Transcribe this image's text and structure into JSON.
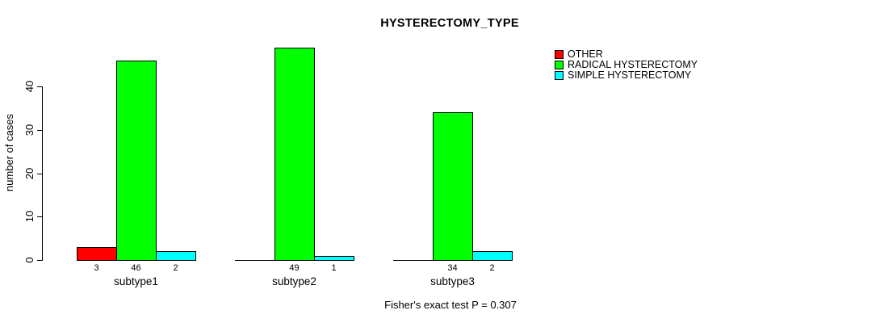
{
  "chart_data": {
    "type": "bar",
    "title": "HYSTERECTOMY_TYPE",
    "ylabel": "number of cases",
    "xlabel": "",
    "categories": [
      "subtype1",
      "subtype2",
      "subtype3"
    ],
    "series": [
      {
        "name": "OTHER",
        "color": "#ff0000",
        "values": [
          3,
          0,
          0
        ]
      },
      {
        "name": "RADICAL HYSTERECTOMY",
        "color": "#00ff00",
        "values": [
          46,
          49,
          34
        ]
      },
      {
        "name": "SIMPLE HYSTERECTOMY",
        "color": "#00ffff",
        "values": [
          2,
          1,
          2
        ]
      }
    ],
    "yticks": [
      0,
      10,
      20,
      30,
      40
    ],
    "ylim": [
      0,
      49
    ],
    "grid": false,
    "legend_position": "top-right",
    "bar_value_labels_shown_for_nonzero_only": true,
    "annotation": "Fisher's exact test P = 0.307",
    "colors": {
      "background": "#ffffff",
      "axis": "#000000",
      "text": "#000000"
    }
  }
}
